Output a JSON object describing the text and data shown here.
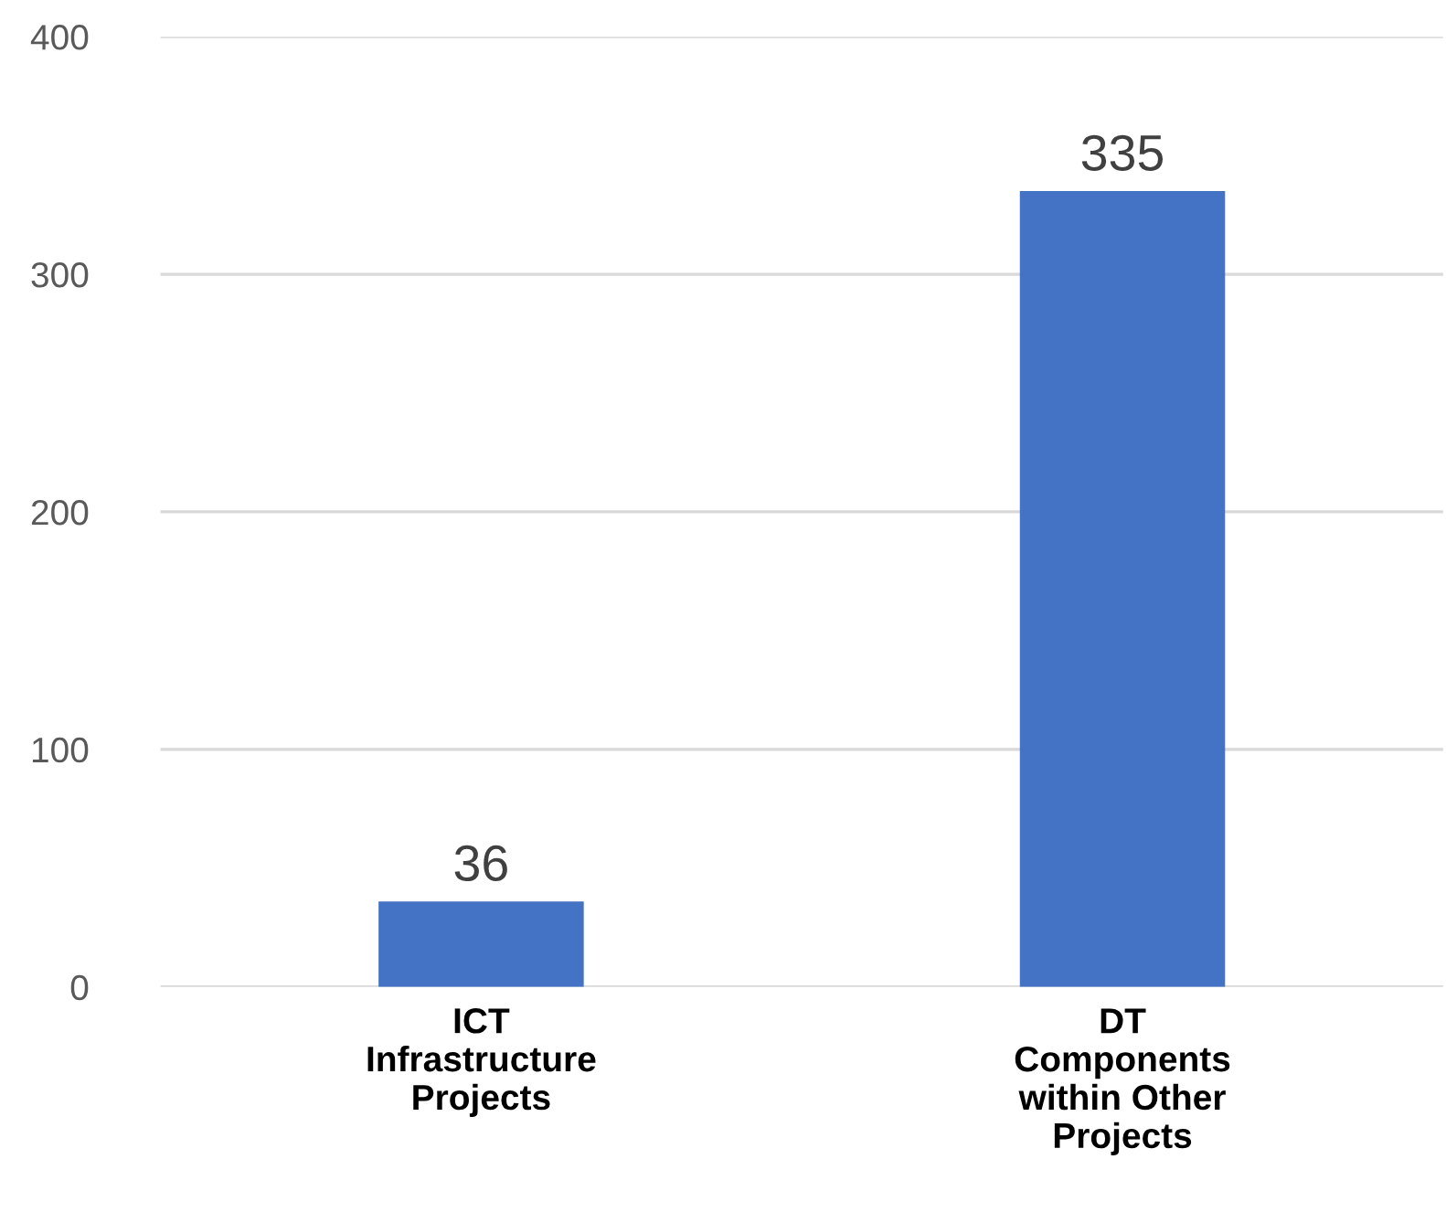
{
  "chart_data": {
    "type": "bar",
    "categories": [
      "ICT Infrastructure Projects",
      "DT Components within Other Projects"
    ],
    "values": [
      36,
      335
    ],
    "color": "#4472c4",
    "ylim": [
      0,
      400
    ],
    "yticks": [
      0,
      100,
      200,
      300,
      400
    ],
    "grid": "y",
    "data_labels": true,
    "legend": false
  }
}
